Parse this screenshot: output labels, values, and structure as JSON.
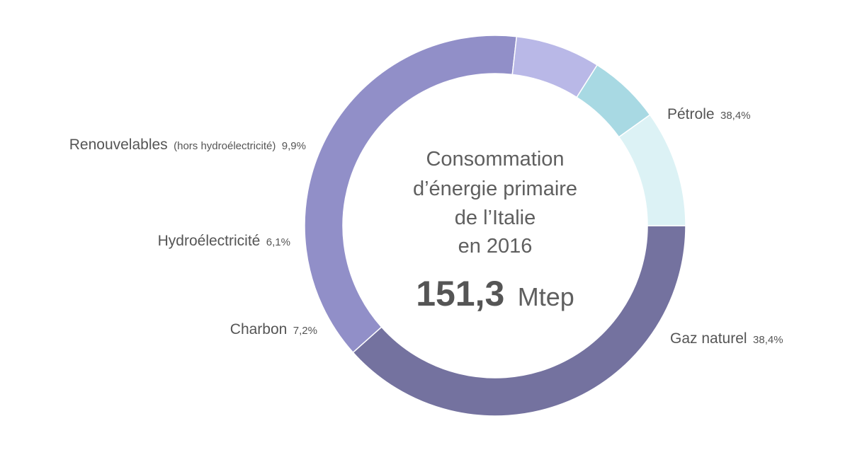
{
  "chart_data": {
    "type": "pie",
    "variant": "donut",
    "title_lines": [
      "Consommation",
      "d’énergie primaire",
      "de l’Italie",
      "en 2016"
    ],
    "total_value": "151,3",
    "total_unit": "Mtep",
    "slices": [
      {
        "key": "petrole",
        "label": "Pétrole",
        "sublabel": "",
        "value": 38.4,
        "value_label": "38,4%",
        "color": "#74729f"
      },
      {
        "key": "gaz",
        "label": "Gaz naturel",
        "sublabel": "",
        "value": 38.4,
        "value_label": "38,4%",
        "color": "#918fc8"
      },
      {
        "key": "charbon",
        "label": "Charbon",
        "sublabel": "",
        "value": 7.2,
        "value_label": "7,2%",
        "color": "#b9b8e7"
      },
      {
        "key": "hydro",
        "label": "Hydroélectricité",
        "sublabel": "",
        "value": 6.1,
        "value_label": "6,1%",
        "color": "#a8d9e3"
      },
      {
        "key": "renouv",
        "label": "Renouvelables",
        "sublabel": "(hors hydroélectricité)",
        "value": 9.9,
        "value_label": "9,9%",
        "color": "#dcf2f5"
      }
    ]
  }
}
